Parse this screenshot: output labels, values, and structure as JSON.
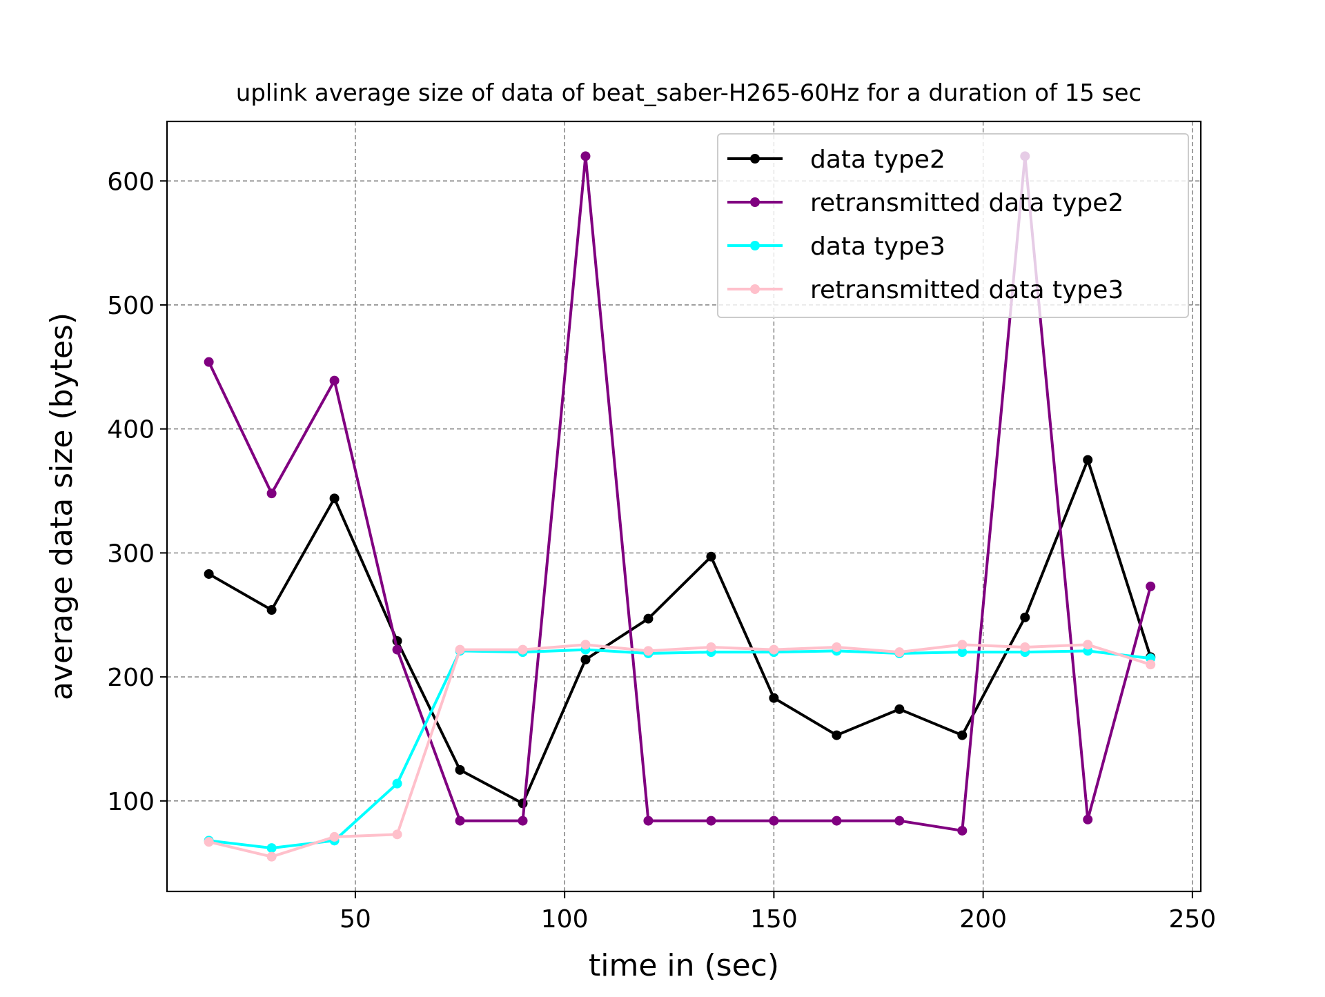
{
  "chart_data": {
    "type": "line",
    "title": "uplink average size of data of beat_saber-H265-60Hz for a duration of 15 sec",
    "xlabel": "time in (sec)",
    "ylabel": "average data size (bytes)",
    "xlim": [
      5,
      252
    ],
    "ylim": [
      27,
      648
    ],
    "xticks": [
      50,
      100,
      150,
      200,
      250
    ],
    "yticks": [
      100,
      200,
      300,
      400,
      500,
      600
    ],
    "grid": true,
    "legend_position": "top-right",
    "x": [
      15,
      30,
      45,
      60,
      75,
      90,
      105,
      120,
      135,
      150,
      165,
      180,
      195,
      210,
      225,
      240
    ],
    "series": [
      {
        "name": "data type2",
        "color": "#000000",
        "values": [
          283,
          254,
          344,
          229,
          125,
          98,
          214,
          247,
          297,
          183,
          153,
          174,
          153,
          248,
          375,
          216
        ]
      },
      {
        "name": "retransmitted data type2",
        "color": "#800080",
        "values": [
          454,
          348,
          439,
          222,
          84,
          84,
          620,
          84,
          84,
          84,
          84,
          84,
          76,
          620,
          85,
          273
        ]
      },
      {
        "name": "data type3",
        "color": "#00ffff",
        "values": [
          68,
          62,
          68,
          114,
          221,
          220,
          222,
          219,
          220,
          220,
          221,
          219,
          220,
          220,
          221,
          215
        ]
      },
      {
        "name": "retransmitted data type3",
        "color": "#ffc0cb",
        "values": [
          67,
          55,
          71,
          73,
          222,
          222,
          226,
          221,
          224,
          222,
          224,
          220,
          226,
          224,
          226,
          210
        ]
      }
    ]
  }
}
